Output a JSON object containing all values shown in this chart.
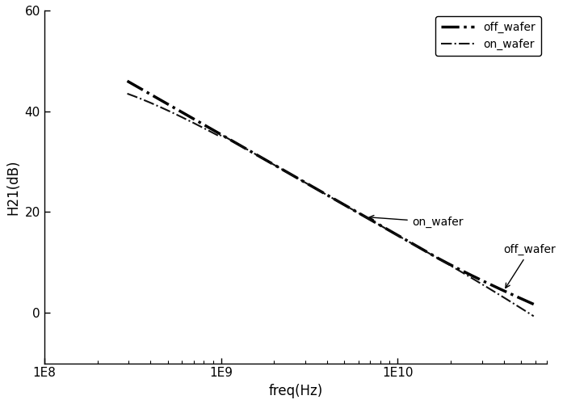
{
  "xlabel": "freq(Hz)",
  "ylabel": "H21(dB)",
  "xlim": [
    100000000.0,
    70000000000.0
  ],
  "ylim": [
    -10,
    60
  ],
  "yticks": [
    0,
    20,
    40,
    60
  ],
  "freq_start_log": 8.47,
  "freq_end_log": 10.77,
  "n_points": 400,
  "off_wafer_color": "#000000",
  "on_wafer_color": "#111111",
  "background_color": "#ffffff",
  "legend_labels": [
    "off_wafer",
    "on_wafer"
  ],
  "annotation_on_wafer": "on_wafer",
  "annotation_off_wafer": "off_wafer",
  "slope_db_per_decade": -20.0,
  "db_at_ref": 46.0,
  "ref_log": 8.47
}
